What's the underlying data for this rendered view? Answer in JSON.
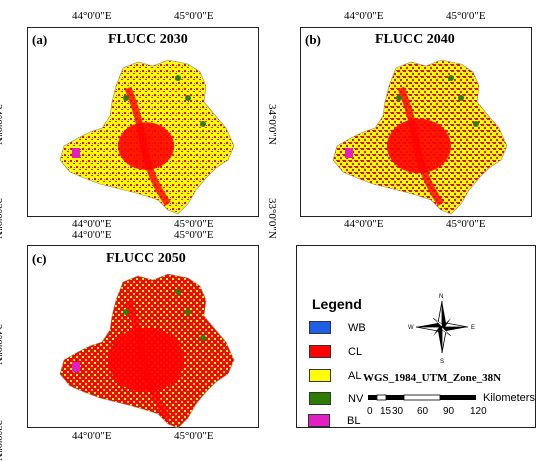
{
  "maps": [
    {
      "label": "(a)",
      "title": "FLUCC 2030"
    },
    {
      "label": "(b)",
      "title": "FLUCC 2040"
    },
    {
      "label": "(c)",
      "title": "FLUCC 2050"
    }
  ],
  "coords": {
    "lon_left": "44°0'0\"E",
    "lon_right": "45°0'0\"E",
    "lat_top": "34°0'0\"N",
    "lat_bottom": "33°0'0\"N"
  },
  "legend": {
    "title": "Legend",
    "items": [
      {
        "label": "WB",
        "color": "#1f5ee6"
      },
      {
        "label": "CL",
        "color": "#ff0000"
      },
      {
        "label": "AL",
        "color": "#ffff00"
      },
      {
        "label": "NV",
        "color": "#2e7d00"
      },
      {
        "label": "BL",
        "color": "#e020c0"
      }
    ]
  },
  "north_arrow": {
    "n": "N",
    "s": "S",
    "e": "E",
    "w": "W"
  },
  "projection": "WGS_1984_UTM_Zone_38N",
  "scalebar": {
    "ticks": [
      "0",
      "15",
      "30",
      "60",
      "90",
      "120"
    ],
    "unit": "Kilometers"
  }
}
